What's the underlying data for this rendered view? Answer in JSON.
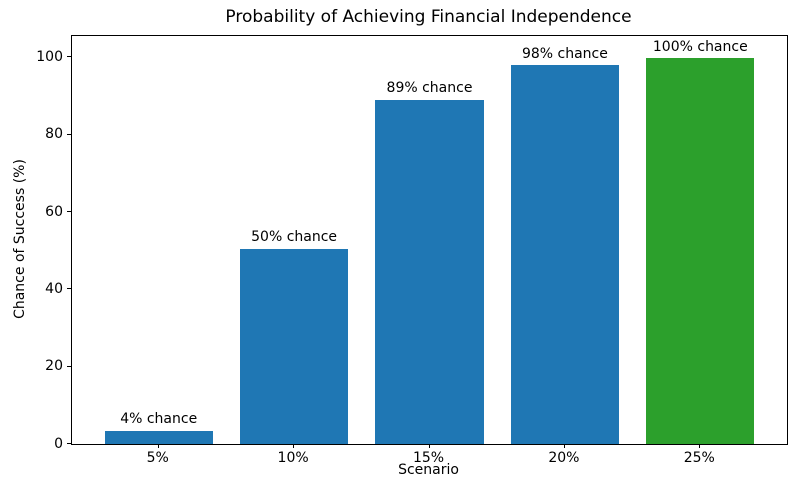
{
  "chart_data": {
    "type": "bar",
    "title": "Probability of Achieving Financial Independence",
    "xlabel": "Scenario",
    "ylabel": "Chance of Success (%)",
    "categories": [
      "5%",
      "10%",
      "15%",
      "20%",
      "25%"
    ],
    "values": [
      3.5,
      50.5,
      89,
      98,
      99.8
    ],
    "bar_labels": [
      "4% chance",
      "50% chance",
      "89% chance",
      "98% chance",
      "100% chance"
    ],
    "bar_colors": [
      "#1f77b4",
      "#1f77b4",
      "#1f77b4",
      "#1f77b4",
      "#2ca02c"
    ],
    "yticks": [
      0,
      20,
      40,
      60,
      80,
      100
    ],
    "ylim": [
      0,
      105.5
    ],
    "bar_width": 0.8,
    "grid": false,
    "legend": "none",
    "text_color": "#000000",
    "spine_color": "#000000",
    "background_color": "#ffffff"
  }
}
